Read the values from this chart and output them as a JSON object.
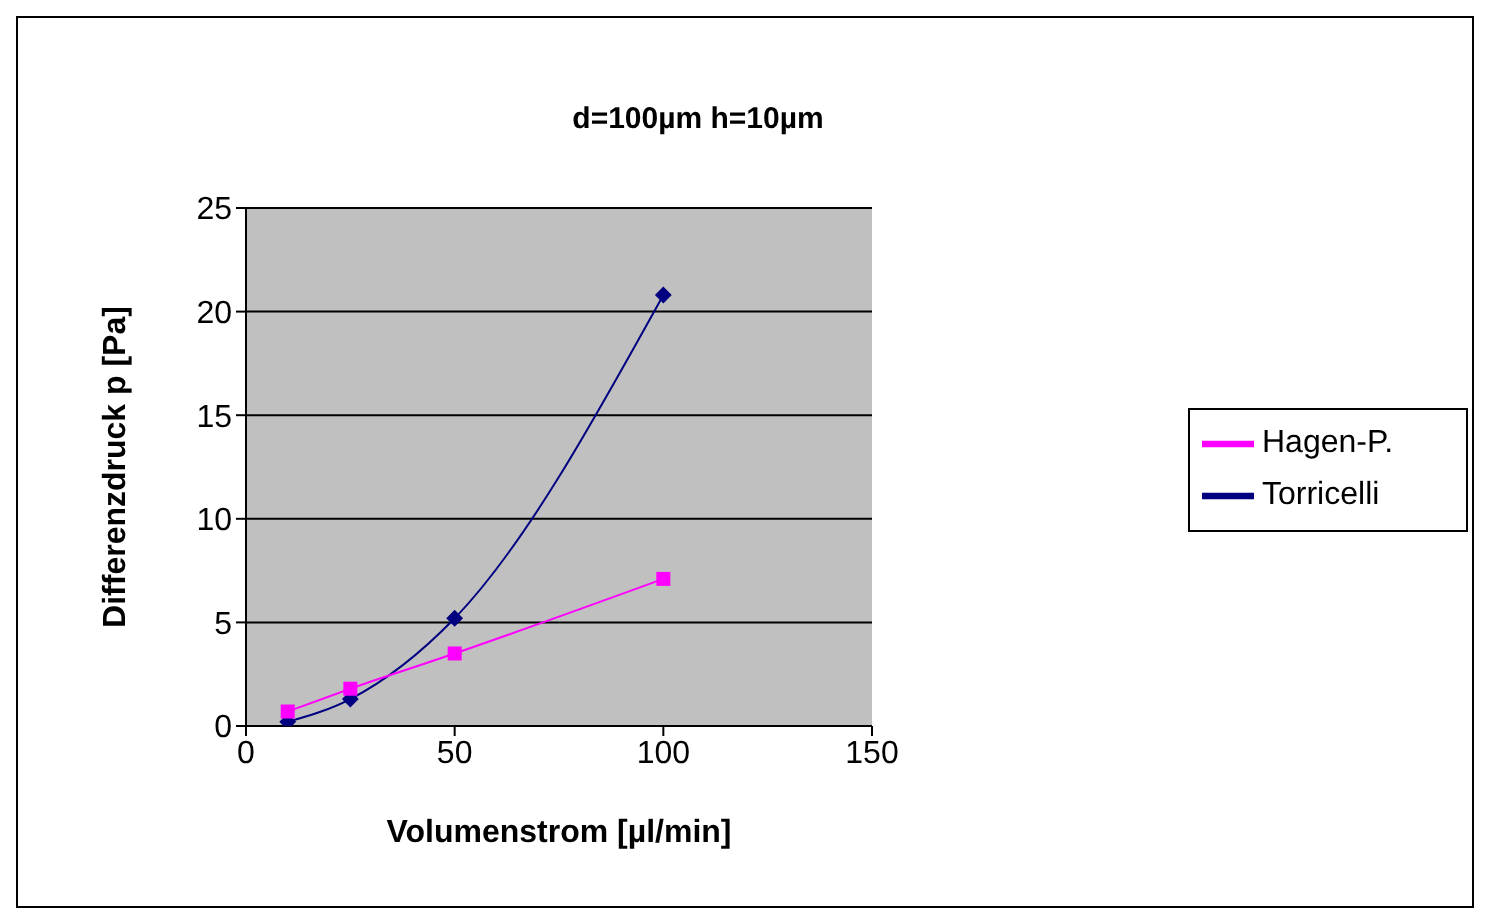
{
  "chart_data": {
    "type": "line",
    "title": "d=100µm h=10µm",
    "xlabel": "Volumenstrom [µl/min]",
    "ylabel": "Differenzdruck p [Pa]",
    "xlim": [
      0,
      150
    ],
    "xticks": [
      0,
      50,
      100,
      150
    ],
    "ylim": [
      0,
      25
    ],
    "yticks": [
      0,
      5,
      10,
      15,
      20,
      25
    ],
    "grid": "y",
    "legend": "right",
    "series": [
      {
        "name": "Torricelli",
        "color": "#000080",
        "marker": "diamond",
        "x": [
          10,
          25,
          50,
          100
        ],
        "values": [
          0.2,
          1.3,
          5.2,
          20.8
        ]
      },
      {
        "name": "Hagen-P.",
        "color": "#ff00ff",
        "marker": "square",
        "x": [
          10,
          25,
          50,
          100
        ],
        "values": [
          0.7,
          1.8,
          3.5,
          7.1
        ]
      }
    ]
  }
}
